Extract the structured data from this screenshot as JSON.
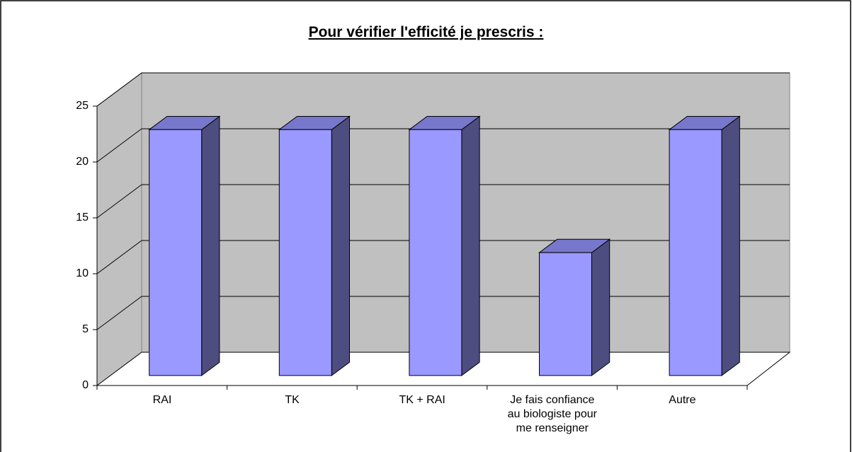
{
  "chart_data": {
    "type": "bar3d",
    "title": "Pour vérifier l'efficité je prescris :",
    "categories": [
      "RAI",
      "TK",
      "TK + RAI",
      "Je fais confiance\nau biologiste pour\nme renseigner",
      "Autre"
    ],
    "values": [
      22,
      22,
      22,
      11,
      22
    ],
    "color": "#9999ff",
    "ylim": [
      0,
      25
    ],
    "yticks": [
      0,
      5,
      10,
      15,
      20,
      25
    ],
    "grid": true
  }
}
